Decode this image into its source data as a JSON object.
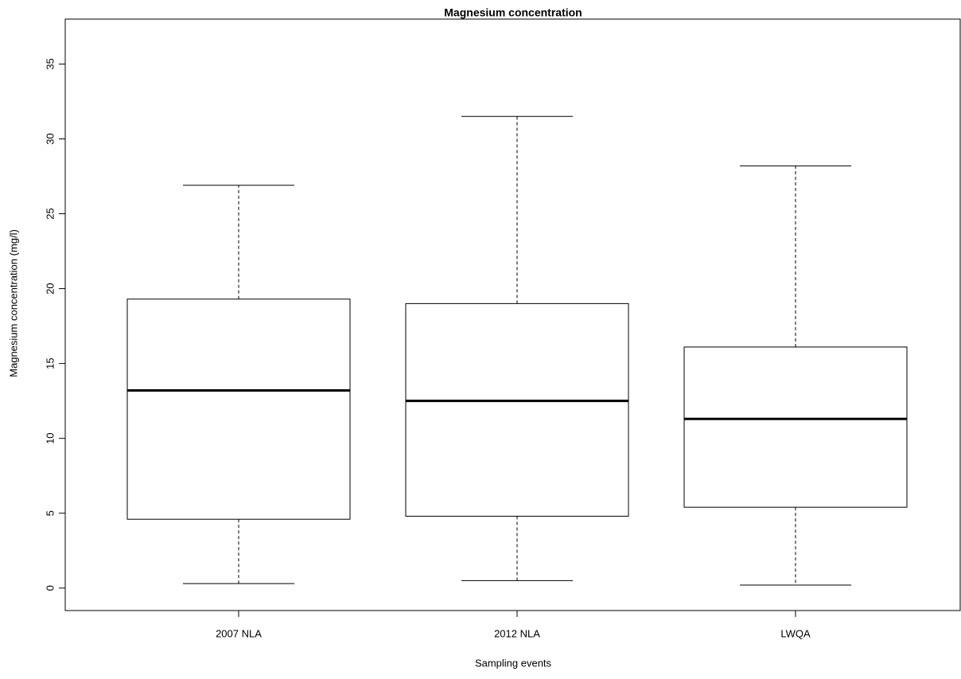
{
  "chart_data": {
    "type": "boxplot",
    "title": "Magnesium concentration",
    "x_label": "Sampling events",
    "y_label": "Magnesium concentration (mg/l)",
    "categories": [
      "2007 NLA",
      "2012 NLA",
      "LWQA"
    ],
    "min": [
      0.3,
      0.5,
      0.2
    ],
    "q1": [
      4.6,
      4.8,
      5.4
    ],
    "median": [
      13.2,
      12.5,
      11.3
    ],
    "q3": [
      19.3,
      19.0,
      16.1
    ],
    "max": [
      26.9,
      31.5,
      28.2
    ],
    "ylim": [
      -1.5,
      38
    ],
    "yticks": [
      0,
      5,
      10,
      15,
      20,
      25,
      30,
      35
    ],
    "grid": false
  }
}
